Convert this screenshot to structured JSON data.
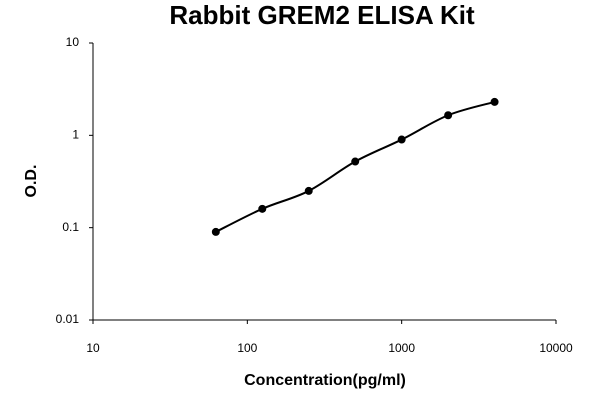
{
  "chart_data": {
    "type": "scatter-line",
    "title": "Rabbit GREM2 ELISA Kit",
    "x_label": "Concentration(pg/ml)",
    "y_label": "O.D.",
    "x": [
      62.5,
      125,
      250,
      500,
      1000,
      2000,
      4000
    ],
    "values": [
      0.09,
      0.16,
      0.25,
      0.52,
      0.9,
      1.65,
      2.3
    ],
    "color": "#000000",
    "log_x": true,
    "log_y": true,
    "xlim": [
      10,
      10000
    ],
    "xticks": [
      10,
      100,
      1000,
      10000
    ],
    "ylim": [
      0.01,
      10
    ],
    "yticks": [
      0.01,
      0.1,
      1,
      10
    ]
  }
}
